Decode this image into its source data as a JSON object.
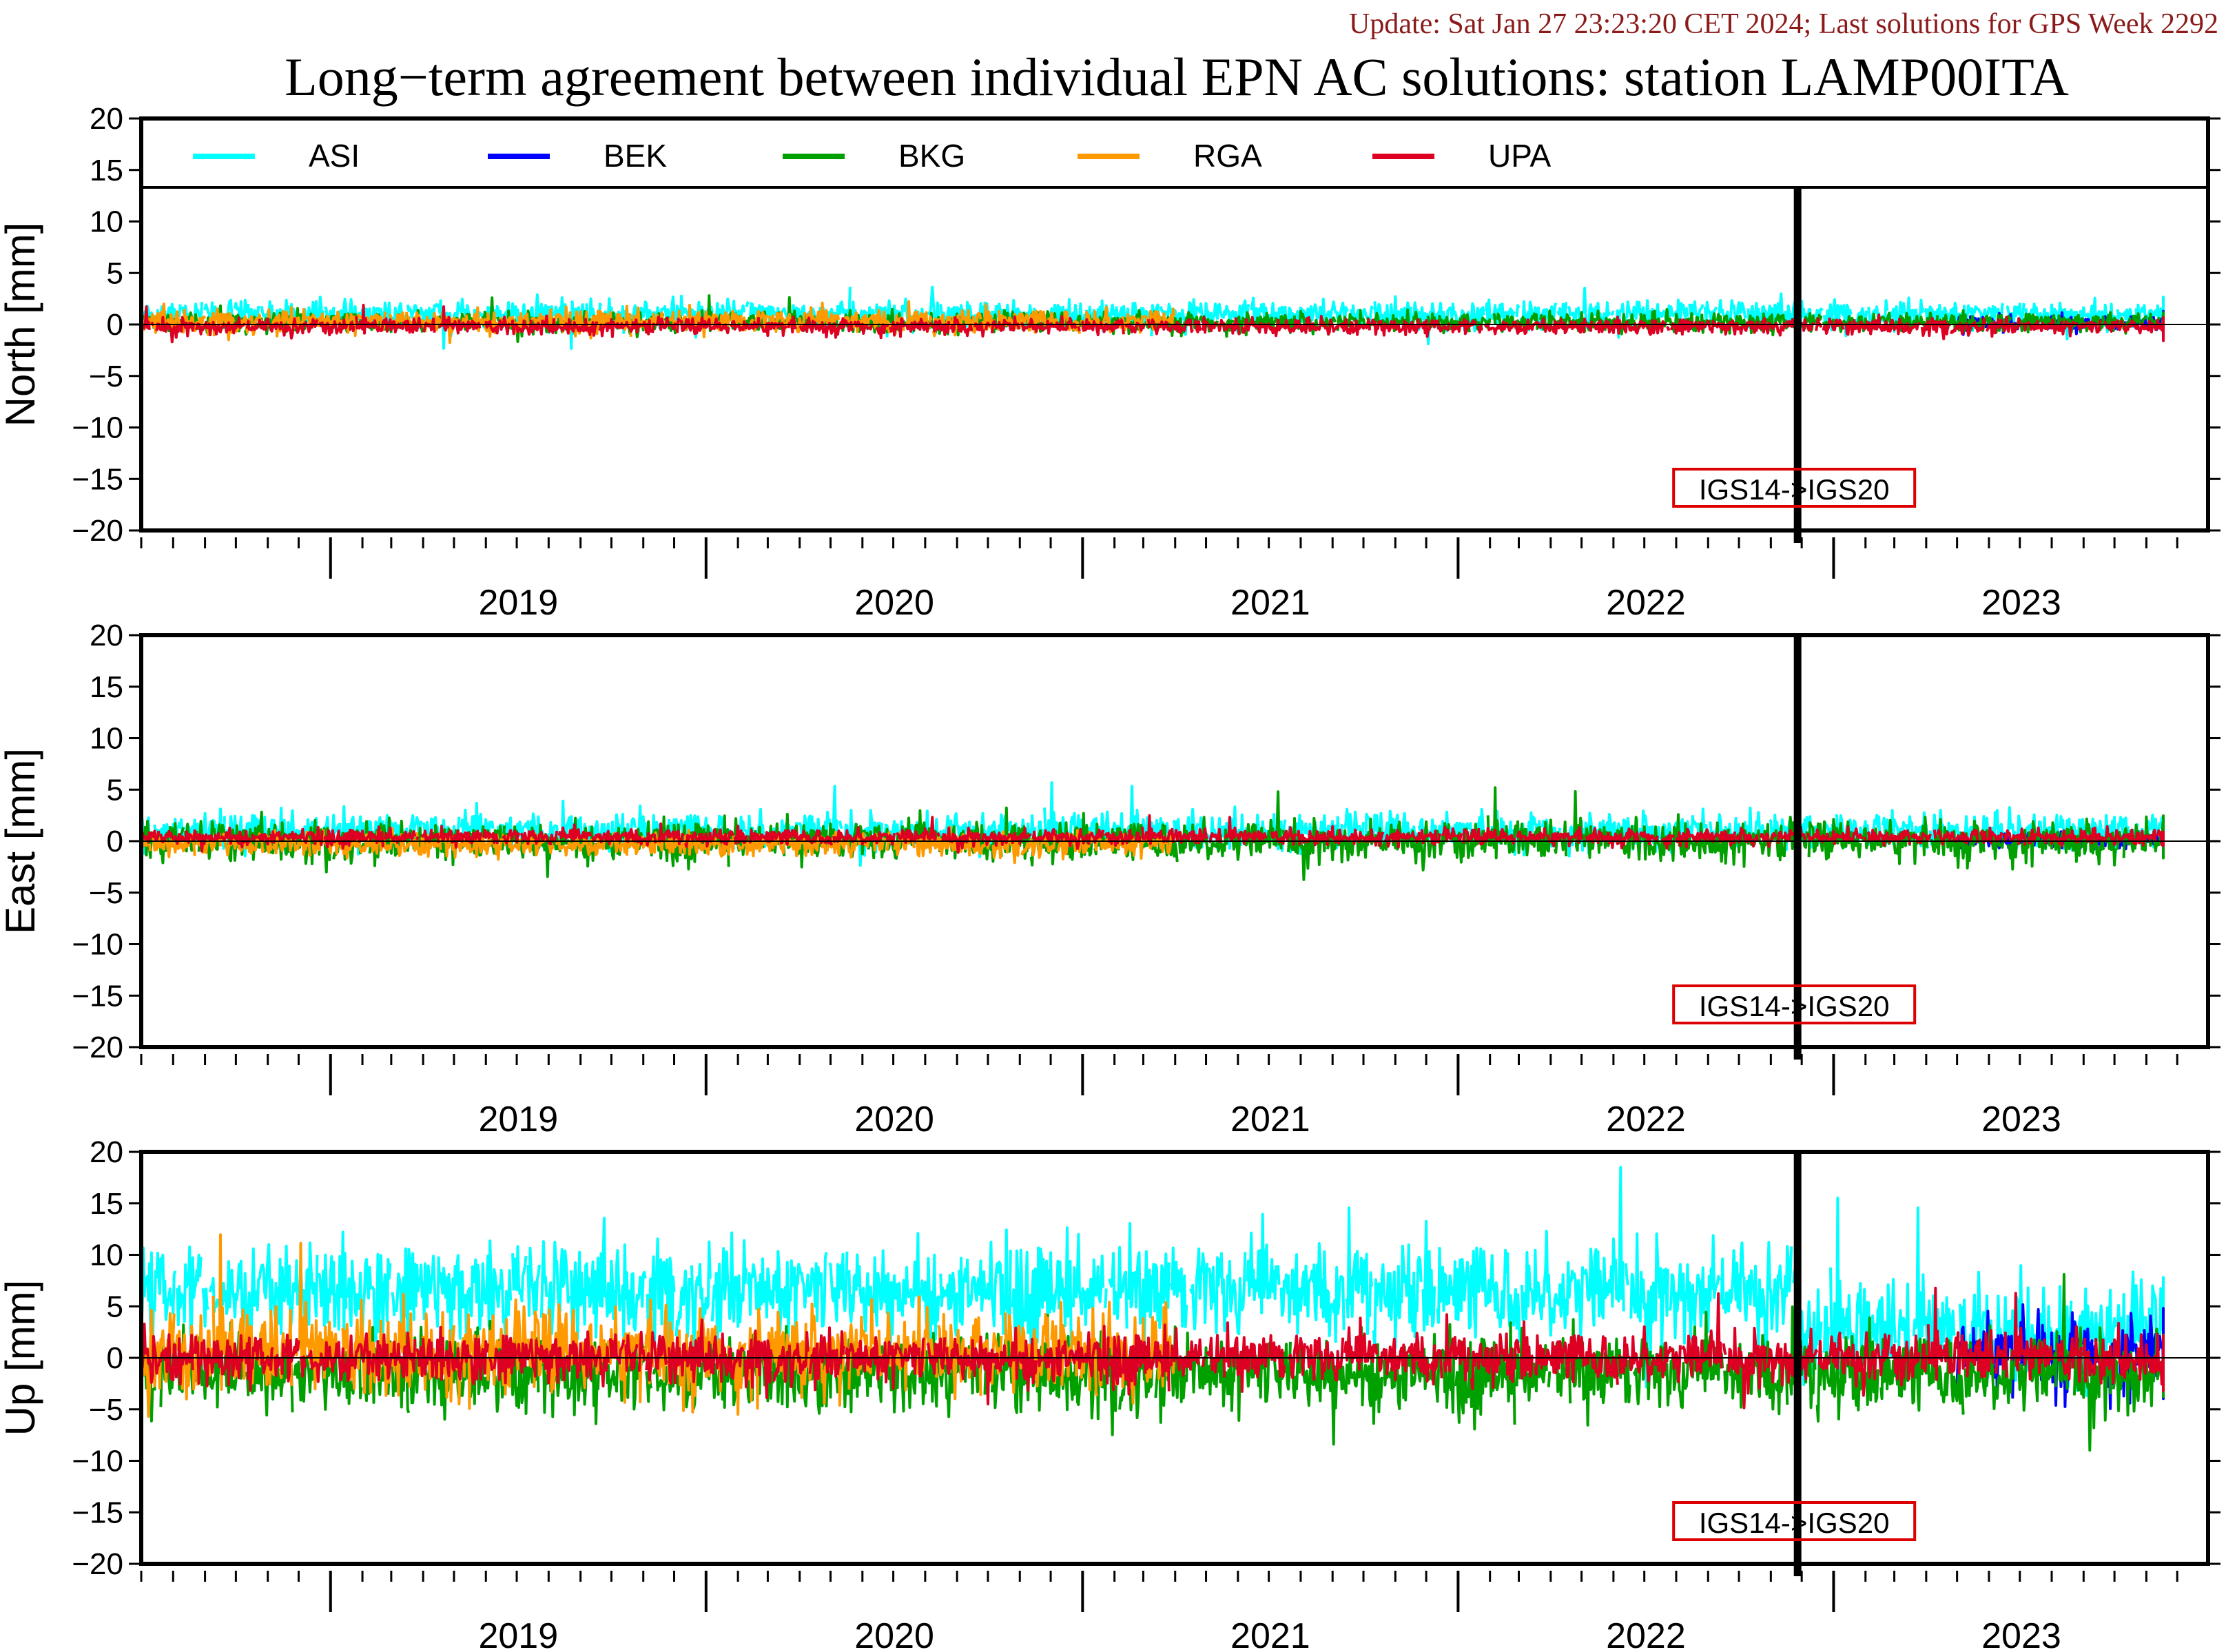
{
  "header": {
    "update_text": "Update: Sat Jan 27 23:23:20 CET 2024; Last solutions for GPS Week 2292",
    "title": "Long−term agreement between individual EPN AC solutions: station LAMP00ITA"
  },
  "colors": {
    "ASI": "#00ffff",
    "BEK": "#0000ff",
    "BKG": "#00a000",
    "RGA": "#ff9900",
    "UPA": "#dd0022",
    "update_text": "#8b1a1a",
    "frame_change_box": "#dd0000"
  },
  "chart_data": [
    {
      "type": "line",
      "panel": "north",
      "ylabel": "North [mm]",
      "ylim": [
        -20,
        20
      ],
      "yticks": [
        20,
        15,
        10,
        5,
        0,
        -5,
        -10,
        -15,
        -20
      ],
      "xlim": [
        "2018-07-01",
        "2023-12-31"
      ],
      "x_tick_labels": [
        "2019",
        "2020",
        "2021",
        "2022",
        "2023"
      ],
      "x_axis_minor_ticks": "monthly",
      "legend": {
        "placement": "top",
        "entries": [
          "ASI",
          "BEK",
          "BKG",
          "RGA",
          "UPA"
        ]
      },
      "annotation": {
        "text": "IGS14->IGS20",
        "date": "2022-11-27"
      },
      "series": [
        {
          "name": "ASI",
          "level_mm": 1.0,
          "scatter_mm": 0.7,
          "start": "2018-07-01",
          "end": "2023-12-24"
        },
        {
          "name": "BEK",
          "level_mm": 0.1,
          "scatter_mm": 0.4,
          "start": "2023-05-01",
          "end": "2023-12-24"
        },
        {
          "name": "BKG",
          "level_mm": 0.2,
          "scatter_mm": 0.5,
          "start": "2018-07-01",
          "end": "2023-12-24"
        },
        {
          "name": "RGA",
          "level_mm": 0.3,
          "scatter_mm": 0.6,
          "start": "2018-07-01",
          "end": "2021-03-31"
        },
        {
          "name": "UPA",
          "level_mm": -0.2,
          "scatter_mm": 0.4,
          "start": "2018-07-01",
          "end": "2023-12-24"
        }
      ]
    },
    {
      "type": "line",
      "panel": "east",
      "ylabel": "East [mm]",
      "ylim": [
        -20,
        20
      ],
      "yticks": [
        20,
        15,
        10,
        5,
        0,
        -5,
        -10,
        -15,
        -20
      ],
      "xlim": [
        "2018-07-01",
        "2023-12-31"
      ],
      "x_tick_labels": [
        "2019",
        "2020",
        "2021",
        "2022",
        "2023"
      ],
      "x_axis_minor_ticks": "monthly",
      "annotation": {
        "text": "IGS14->IGS20",
        "date": "2022-11-27"
      },
      "series": [
        {
          "name": "ASI",
          "level_mm": 1.0,
          "scatter_mm": 0.9,
          "start": "2018-07-01",
          "end": "2023-12-24"
        },
        {
          "name": "BEK",
          "level_mm": 0.0,
          "scatter_mm": 0.4,
          "start": "2023-05-01",
          "end": "2023-12-24"
        },
        {
          "name": "BKG",
          "level_mm": 0.0,
          "scatter_mm": 1.0,
          "start": "2018-07-01",
          "end": "2023-12-24"
        },
        {
          "name": "RGA",
          "level_mm": -0.3,
          "scatter_mm": 0.6,
          "start": "2018-07-01",
          "end": "2021-03-31"
        },
        {
          "name": "UPA",
          "level_mm": 0.4,
          "scatter_mm": 0.4,
          "start": "2018-07-01",
          "end": "2023-12-24"
        }
      ]
    },
    {
      "type": "line",
      "panel": "up",
      "ylabel": "Up [mm]",
      "ylim": [
        -20,
        20
      ],
      "yticks": [
        20,
        15,
        10,
        5,
        0,
        -5,
        -10,
        -15,
        -20
      ],
      "xlim": [
        "2018-07-01",
        "2023-12-31"
      ],
      "x_tick_labels": [
        "2019",
        "2020",
        "2021",
        "2022",
        "2023"
      ],
      "x_axis_minor_ticks": "monthly",
      "annotation": {
        "text": "IGS14->IGS20",
        "date": "2022-11-27"
      },
      "series": [
        {
          "name": "ASI",
          "level_mm": 6.5,
          "level_after_2022_11_27_mm": 2.5,
          "scatter_mm": 2.5,
          "start": "2018-07-01",
          "end": "2023-12-24"
        },
        {
          "name": "BEK",
          "level_mm": 0.5,
          "scatter_mm": 2.0,
          "start": "2023-05-01",
          "end": "2023-12-24"
        },
        {
          "name": "BKG",
          "level_mm": -1.5,
          "scatter_mm": 2.0,
          "start": "2018-07-01",
          "end": "2023-12-24"
        },
        {
          "name": "RGA",
          "level_mm": 0.5,
          "scatter_mm": 2.2,
          "start": "2018-07-01",
          "end": "2021-03-31"
        },
        {
          "name": "UPA",
          "level_mm": 0.0,
          "scatter_mm": 1.3,
          "start": "2018-07-01",
          "end": "2023-12-24"
        }
      ]
    }
  ]
}
